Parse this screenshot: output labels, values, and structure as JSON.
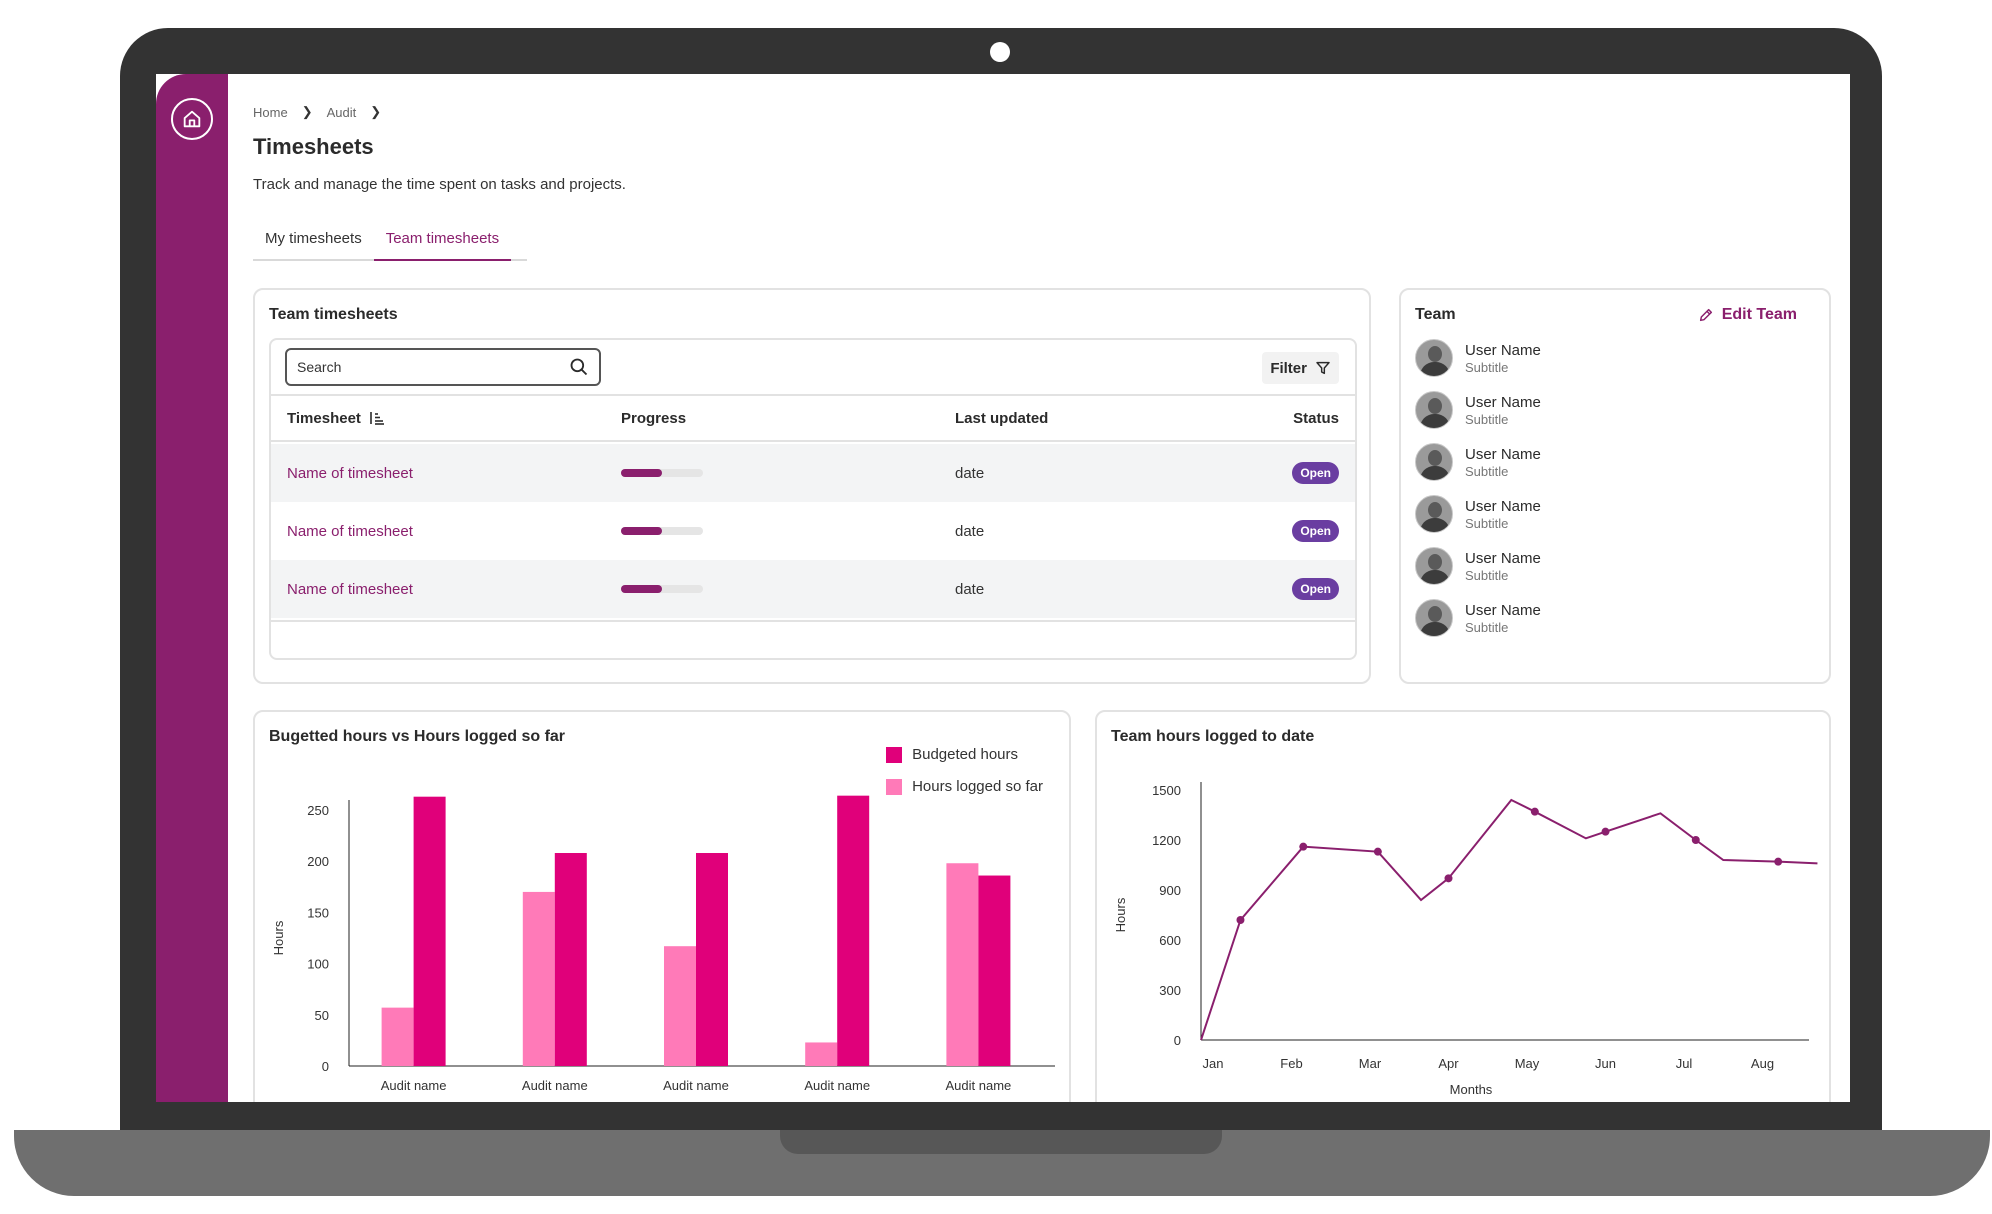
{
  "breadcrumb": {
    "home": "Home",
    "audit": "Audit"
  },
  "page": {
    "title": "Timesheets",
    "description": "Track and manage the time spent on tasks and projects."
  },
  "tabs": [
    {
      "label": "My timesheets"
    },
    {
      "label": "Team timesheets"
    }
  ],
  "timesheets": {
    "title": "Team timesheets",
    "search_placeholder": "Search",
    "filter_label": "Filter",
    "columns": {
      "timesheet": "Timesheet",
      "progress": "Progress",
      "last_updated": "Last updated",
      "status": "Status"
    },
    "rows": [
      {
        "name": "Name of timesheet",
        "progress": 0.5,
        "date": "date",
        "status": "Open"
      },
      {
        "name": "Name of timesheet",
        "progress": 0.5,
        "date": "date",
        "status": "Open"
      },
      {
        "name": "Name of timesheet",
        "progress": 0.5,
        "date": "date",
        "status": "Open"
      }
    ]
  },
  "team": {
    "title": "Team",
    "edit_label": "Edit Team",
    "members": [
      {
        "name": "User Name",
        "subtitle": "Subtitle"
      },
      {
        "name": "User Name",
        "subtitle": "Subtitle"
      },
      {
        "name": "User Name",
        "subtitle": "Subtitle"
      },
      {
        "name": "User Name",
        "subtitle": "Subtitle"
      },
      {
        "name": "User Name",
        "subtitle": "Subtitle"
      },
      {
        "name": "User Name",
        "subtitle": "Subtitle"
      }
    ]
  },
  "colors": {
    "brand": "#8a1f6d",
    "budgeted": "#e0007a",
    "logged": "#ff7ab8",
    "badge": "#6a3ea1"
  },
  "chart_data": [
    {
      "type": "bar",
      "title": "Bugetted hours vs Hours logged so far",
      "ylabel": "Hours",
      "xlabel": "",
      "ylim": [
        0,
        250
      ],
      "yticks": [
        0,
        50,
        100,
        150,
        200,
        250
      ],
      "categories": [
        "Audit name",
        "Audit name",
        "Audit name",
        "Audit name",
        "Audit name"
      ],
      "series": [
        {
          "name": "Hours logged so far",
          "values": [
            57,
            170,
            117,
            23,
            198
          ]
        },
        {
          "name": "Budgeted hours",
          "values": [
            263,
            208,
            208,
            264,
            186
          ]
        }
      ],
      "legend": [
        "Budgeted hours",
        "Hours logged so far"
      ]
    },
    {
      "type": "line",
      "title": "Team hours logged to date",
      "ylabel": "Hours",
      "xlabel": "Months",
      "ylim": [
        0,
        1500
      ],
      "yticks": [
        0,
        300,
        600,
        900,
        1200,
        1500
      ],
      "x_labels": [
        "Jan",
        "Feb",
        "Mar",
        "Apr",
        "May",
        "Jun",
        "Jul",
        "Aug"
      ],
      "points": [
        {
          "x": 0,
          "y": 0
        },
        {
          "x": 0.35,
          "y": 720,
          "marker": true
        },
        {
          "x": 1.15,
          "y": 1160,
          "marker": true
        },
        {
          "x": 2.1,
          "y": 1130,
          "marker": true
        },
        {
          "x": 2.65,
          "y": 840
        },
        {
          "x": 3.0,
          "y": 970,
          "marker": true
        },
        {
          "x": 3.8,
          "y": 1440
        },
        {
          "x": 4.1,
          "y": 1370,
          "marker": true
        },
        {
          "x": 4.75,
          "y": 1210
        },
        {
          "x": 5.0,
          "y": 1250,
          "marker": true
        },
        {
          "x": 5.7,
          "y": 1360
        },
        {
          "x": 6.15,
          "y": 1200,
          "marker": true
        },
        {
          "x": 6.5,
          "y": 1080
        },
        {
          "x": 7.2,
          "y": 1070,
          "marker": true
        },
        {
          "x": 7.7,
          "y": 1060
        }
      ]
    }
  ]
}
